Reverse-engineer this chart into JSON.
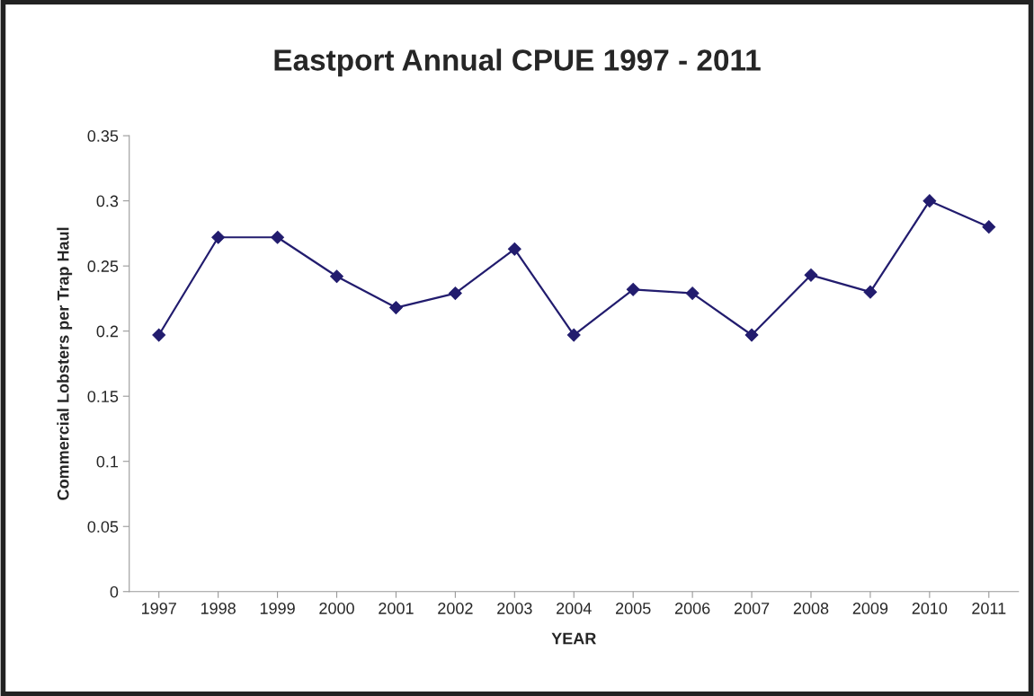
{
  "chart_data": {
    "type": "line",
    "title": "Eastport Annual CPUE 1997 - 2011",
    "xlabel": "YEAR",
    "ylabel": "Commercial Lobsters per Trap Haul",
    "categories": [
      "1997",
      "1998",
      "1999",
      "2000",
      "2001",
      "2002",
      "2003",
      "2004",
      "2005",
      "2006",
      "2007",
      "2008",
      "2009",
      "2010",
      "2011"
    ],
    "series": [
      {
        "color": "#221c6e",
        "values": [
          0.197,
          0.272,
          0.272,
          0.242,
          0.218,
          0.229,
          0.263,
          0.197,
          0.232,
          0.229,
          0.197,
          0.243,
          0.23,
          0.3,
          0.28
        ]
      }
    ],
    "ylim": [
      0,
      0.35
    ],
    "yticks": [
      0,
      0.05,
      0.1,
      0.15,
      0.2,
      0.25,
      0.3,
      0.35
    ],
    "marker": "diamond",
    "line_style": "solid",
    "grid": false,
    "legend": false
  }
}
